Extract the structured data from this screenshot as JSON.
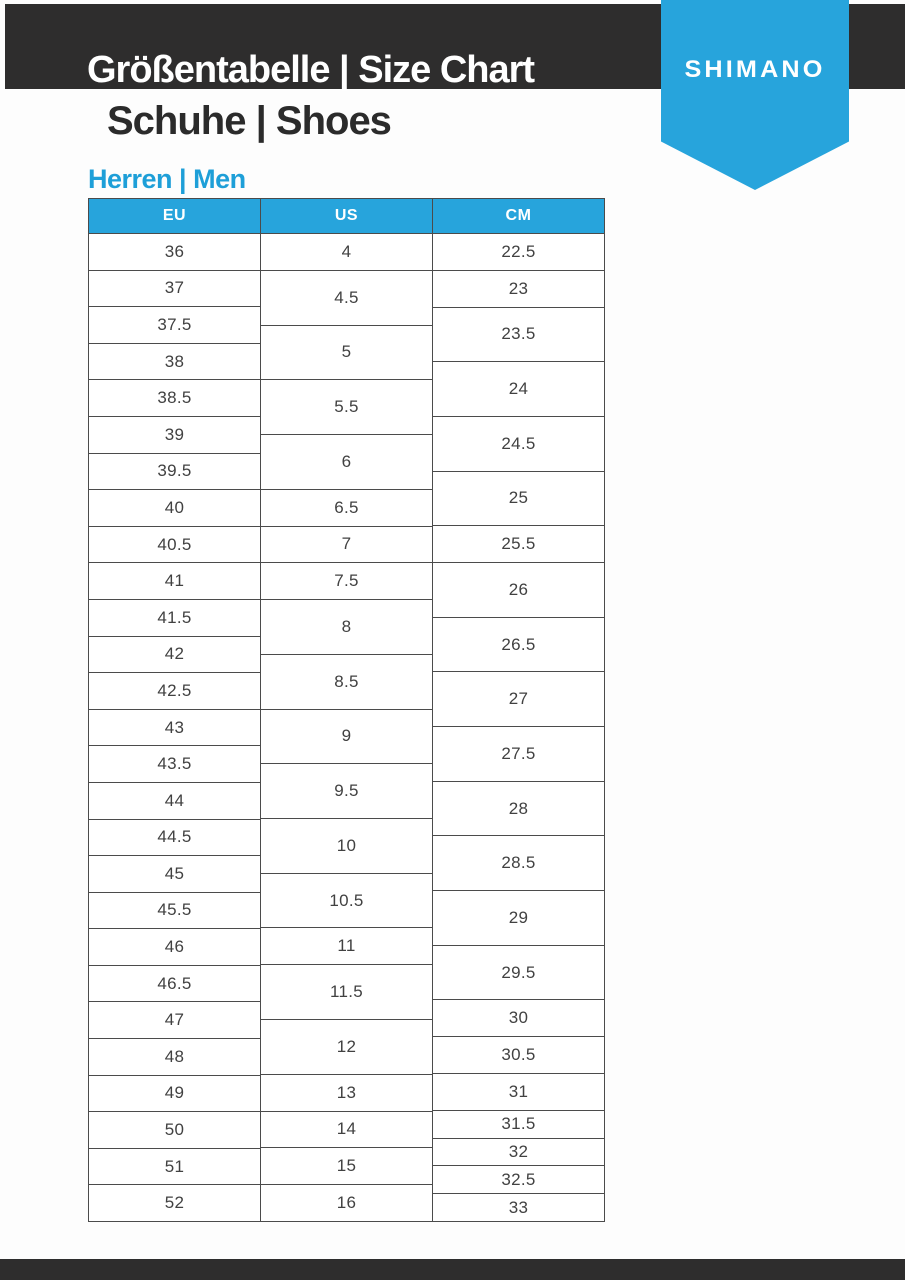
{
  "header": {
    "title": "Größentabelle | Size Chart",
    "subtitle": "Schuhe | Shoes",
    "brand": "SHIMANO"
  },
  "section_label": "Herren | Men",
  "colors": {
    "blue": "#27A4DC",
    "text-blue": "#1E9FD8",
    "dark": "#2E2D2D",
    "border": "#4B4B4B",
    "cell-text": "#414141"
  },
  "table": {
    "columns": [
      {
        "key": "eu",
        "header": "EU",
        "cells": [
          {
            "value": "36",
            "span": 2
          },
          {
            "value": "37",
            "span": 2
          },
          {
            "value": "37.5",
            "span": 2
          },
          {
            "value": "38",
            "span": 2
          },
          {
            "value": "38.5",
            "span": 2
          },
          {
            "value": "39",
            "span": 2
          },
          {
            "value": "39.5",
            "span": 2
          },
          {
            "value": "40",
            "span": 2
          },
          {
            "value": "40.5",
            "span": 2
          },
          {
            "value": "41",
            "span": 2
          },
          {
            "value": "41.5",
            "span": 2
          },
          {
            "value": "42",
            "span": 2
          },
          {
            "value": "42.5",
            "span": 2
          },
          {
            "value": "43",
            "span": 2
          },
          {
            "value": "43.5",
            "span": 2
          },
          {
            "value": "44",
            "span": 2
          },
          {
            "value": "44.5",
            "span": 2
          },
          {
            "value": "45",
            "span": 2
          },
          {
            "value": "45.5",
            "span": 2
          },
          {
            "value": "46",
            "span": 2
          },
          {
            "value": "46.5",
            "span": 2
          },
          {
            "value": "47",
            "span": 2
          },
          {
            "value": "48",
            "span": 2
          },
          {
            "value": "49",
            "span": 2
          },
          {
            "value": "50",
            "span": 2
          },
          {
            "value": "51",
            "span": 2
          },
          {
            "value": "52",
            "span": 2
          }
        ]
      },
      {
        "key": "us",
        "header": "US",
        "cells": [
          {
            "value": "4",
            "span": 2
          },
          {
            "value": "4.5",
            "span": 3
          },
          {
            "value": "5",
            "span": 3
          },
          {
            "value": "5.5",
            "span": 3
          },
          {
            "value": "6",
            "span": 3
          },
          {
            "value": "6.5",
            "span": 2
          },
          {
            "value": "7",
            "span": 2
          },
          {
            "value": "7.5",
            "span": 2
          },
          {
            "value": "8",
            "span": 3
          },
          {
            "value": "8.5",
            "span": 3
          },
          {
            "value": "9",
            "span": 3
          },
          {
            "value": "9.5",
            "span": 3
          },
          {
            "value": "10",
            "span": 3
          },
          {
            "value": "10.5",
            "span": 3
          },
          {
            "value": "11",
            "span": 2
          },
          {
            "value": "11.5",
            "span": 3
          },
          {
            "value": "12",
            "span": 3
          },
          {
            "value": "13",
            "span": 2
          },
          {
            "value": "14",
            "span": 2
          },
          {
            "value": "15",
            "span": 2
          },
          {
            "value": "16",
            "span": 2
          }
        ]
      },
      {
        "key": "cm",
        "header": "CM",
        "cells": [
          {
            "value": "22.5",
            "span": 2
          },
          {
            "value": "23",
            "span": 2
          },
          {
            "value": "23.5",
            "span": 3
          },
          {
            "value": "24",
            "span": 3
          },
          {
            "value": "24.5",
            "span": 3
          },
          {
            "value": "25",
            "span": 3
          },
          {
            "value": "25.5",
            "span": 2
          },
          {
            "value": "26",
            "span": 3
          },
          {
            "value": "26.5",
            "span": 3
          },
          {
            "value": "27",
            "span": 3
          },
          {
            "value": "27.5",
            "span": 3
          },
          {
            "value": "28",
            "span": 3
          },
          {
            "value": "28.5",
            "span": 3
          },
          {
            "value": "29",
            "span": 3
          },
          {
            "value": "29.5",
            "span": 3
          },
          {
            "value": "30",
            "span": 2
          },
          {
            "value": "30.5",
            "span": 2
          },
          {
            "value": "31",
            "span": 2
          },
          {
            "value": "31.5",
            "span": 1.5
          },
          {
            "value": "32",
            "span": 1.5
          },
          {
            "value": "32.5",
            "span": 1.5
          },
          {
            "value": "33",
            "span": 1.5
          }
        ]
      }
    ]
  }
}
